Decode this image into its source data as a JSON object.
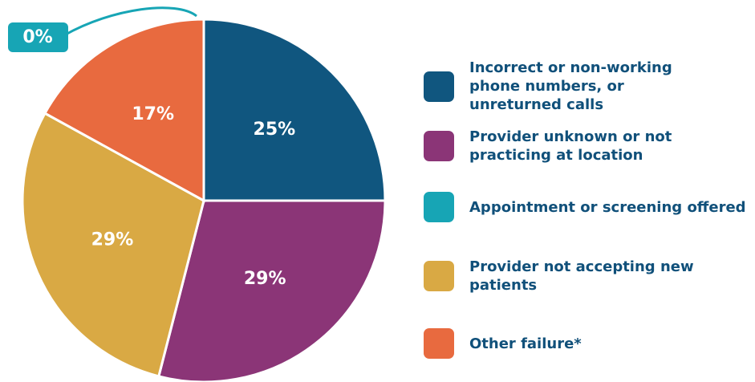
{
  "chart_data": {
    "type": "pie",
    "categories": [
      "Incorrect or non-working phone numbers, or unreturned calls",
      "Provider unknown or not practicing at location",
      "Appointment or screening offered",
      "Provider not accepting new patients",
      "Other failure*"
    ],
    "values": [
      25,
      29,
      0,
      29,
      17
    ],
    "value_labels": [
      "25%",
      "29%",
      "0%",
      "29%",
      "17%"
    ],
    "colors": [
      "#10567f",
      "#8b3577",
      "#17a5b5",
      "#d9a944",
      "#e86a3f"
    ]
  }
}
